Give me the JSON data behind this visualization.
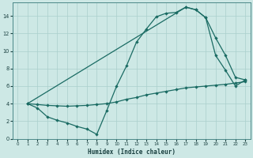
{
  "xlabel": "Humidex (Indice chaleur)",
  "bg_color": "#cde8e5",
  "grid_color": "#aacfcc",
  "line_color": "#1a6b63",
  "xlim": [
    -0.5,
    23.5
  ],
  "ylim": [
    0,
    15.5
  ],
  "xticks": [
    0,
    1,
    2,
    3,
    4,
    5,
    6,
    7,
    8,
    9,
    10,
    11,
    12,
    13,
    14,
    15,
    16,
    17,
    18,
    19,
    20,
    21,
    22,
    23
  ],
  "yticks": [
    0,
    2,
    4,
    6,
    8,
    10,
    12,
    14
  ],
  "line1_x": [
    1,
    2,
    3,
    4,
    5,
    6,
    7,
    8,
    9,
    10,
    11,
    12,
    13,
    14,
    15,
    16,
    17,
    18,
    19,
    20,
    21,
    22,
    23
  ],
  "line1_y": [
    4.0,
    3.5,
    2.5,
    2.1,
    1.8,
    1.4,
    1.1,
    0.5,
    3.2,
    6.0,
    8.3,
    11.0,
    12.5,
    13.9,
    14.3,
    14.4,
    15.0,
    14.7,
    13.8,
    9.5,
    7.8,
    6.0,
    6.7
  ],
  "line2_x": [
    1,
    17,
    18,
    19,
    20,
    21,
    22,
    23
  ],
  "line2_y": [
    4.0,
    15.0,
    14.7,
    13.8,
    11.5,
    9.5,
    7.0,
    6.7
  ],
  "line3_x": [
    1,
    2,
    3,
    4,
    5,
    6,
    7,
    8,
    9,
    10,
    11,
    12,
    13,
    14,
    15,
    16,
    17,
    18,
    19,
    20,
    21,
    22,
    23
  ],
  "line3_y": [
    4.0,
    3.9,
    3.8,
    3.75,
    3.7,
    3.75,
    3.8,
    3.9,
    4.0,
    4.2,
    4.5,
    4.7,
    5.0,
    5.2,
    5.4,
    5.6,
    5.8,
    5.9,
    6.0,
    6.1,
    6.2,
    6.35,
    6.5
  ]
}
